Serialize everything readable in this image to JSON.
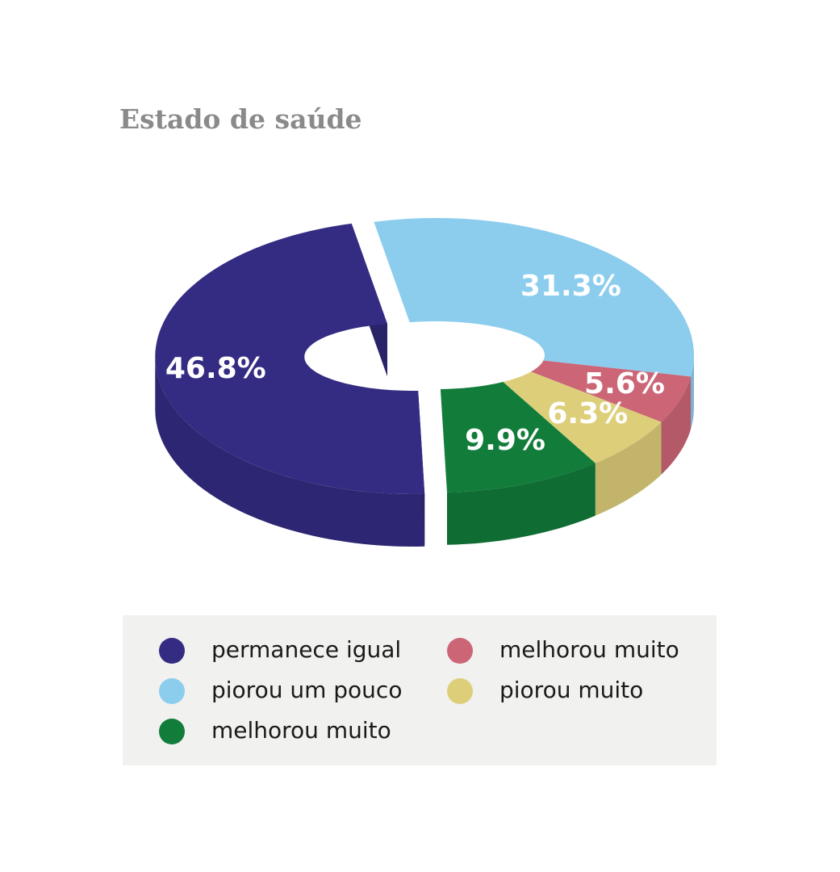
{
  "chart_data": {
    "type": "donut3d",
    "title": "Estado de saúde",
    "categories": [
      "permanece igual",
      "piorou um pouco",
      "melhorou muito",
      "piorou muito",
      "melhorou muito"
    ],
    "values": [
      46.8,
      31.3,
      5.6,
      6.3,
      9.9
    ],
    "value_labels": [
      "46.8%",
      "31.3%",
      "5.6%",
      "6.3%",
      "9.9%"
    ],
    "colors": [
      "#342c82",
      "#8ccdee",
      "#cc6677",
      "#ddcf7a",
      "#127c3a"
    ]
  }
}
